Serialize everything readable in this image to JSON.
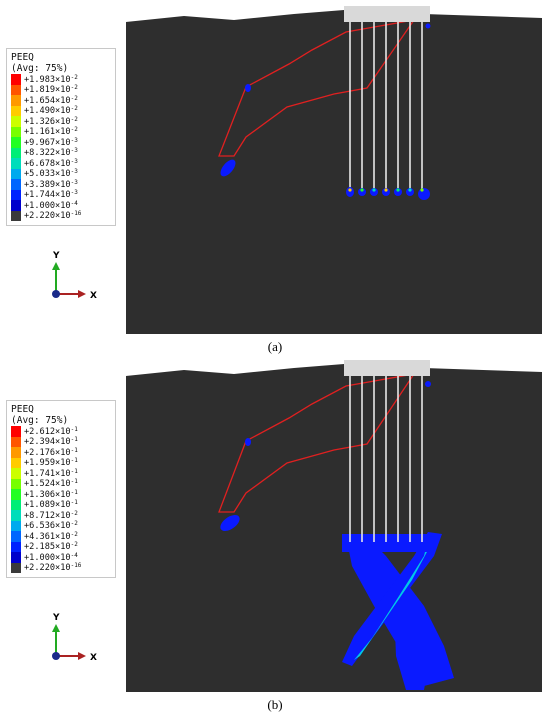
{
  "panels": [
    {
      "caption": "(a)",
      "legend": {
        "title": "PEEQ",
        "subtitle": "(Avg: 75%)",
        "entries": [
          {
            "mant": "+1.983",
            "exp": "-2",
            "color": "#ff0000"
          },
          {
            "mant": "+1.819",
            "exp": "-2",
            "color": "#ff5500"
          },
          {
            "mant": "+1.654",
            "exp": "-2",
            "color": "#ff9900"
          },
          {
            "mant": "+1.490",
            "exp": "-2",
            "color": "#ffcc00"
          },
          {
            "mant": "+1.326",
            "exp": "-2",
            "color": "#ccff00"
          },
          {
            "mant": "+1.161",
            "exp": "-2",
            "color": "#77ff00"
          },
          {
            "mant": "+9.967",
            "exp": "-3",
            "color": "#22ff22"
          },
          {
            "mant": "+8.322",
            "exp": "-3",
            "color": "#00ee77"
          },
          {
            "mant": "+6.678",
            "exp": "-3",
            "color": "#00ddbb"
          },
          {
            "mant": "+5.033",
            "exp": "-3",
            "color": "#00aaee"
          },
          {
            "mant": "+3.389",
            "exp": "-3",
            "color": "#0066ff"
          },
          {
            "mant": "+1.744",
            "exp": "-3",
            "color": "#0022ff"
          },
          {
            "mant": "+1.000",
            "exp": "-4",
            "color": "#0000cc"
          },
          {
            "mant": "+2.220",
            "exp": "-16",
            "color": "#3a3a3a"
          }
        ]
      },
      "axes": {
        "y": "Y",
        "x": "X"
      }
    },
    {
      "caption": "(b)",
      "legend": {
        "title": "PEEQ",
        "subtitle": "(Avg: 75%)",
        "entries": [
          {
            "mant": "+2.612",
            "exp": "-1",
            "color": "#ff0000"
          },
          {
            "mant": "+2.394",
            "exp": "-1",
            "color": "#ff5500"
          },
          {
            "mant": "+2.176",
            "exp": "-1",
            "color": "#ff9900"
          },
          {
            "mant": "+1.959",
            "exp": "-1",
            "color": "#ffcc00"
          },
          {
            "mant": "+1.741",
            "exp": "-1",
            "color": "#ccff00"
          },
          {
            "mant": "+1.524",
            "exp": "-1",
            "color": "#77ff00"
          },
          {
            "mant": "+1.306",
            "exp": "-1",
            "color": "#22ff22"
          },
          {
            "mant": "+1.089",
            "exp": "-1",
            "color": "#00ee77"
          },
          {
            "mant": "+8.712",
            "exp": "-2",
            "color": "#00ddbb"
          },
          {
            "mant": "+6.536",
            "exp": "-2",
            "color": "#00aaee"
          },
          {
            "mant": "+4.361",
            "exp": "-2",
            "color": "#0066ff"
          },
          {
            "mant": "+2.185",
            "exp": "-2",
            "color": "#0022ff"
          },
          {
            "mant": "+1.000",
            "exp": "-4",
            "color": "#0000cc"
          },
          {
            "mant": "+2.220",
            "exp": "-16",
            "color": "#3a3a3a"
          }
        ]
      },
      "axes": {
        "y": "Y",
        "x": "X"
      }
    }
  ],
  "colors": {
    "soil": "#2e2e2e",
    "cap": "#d9d9d9",
    "pile": "#e8e8e8",
    "slip_line": "#e02020",
    "plastic_low": "#0a1aff",
    "plastic_mid": "#00c8e8"
  }
}
